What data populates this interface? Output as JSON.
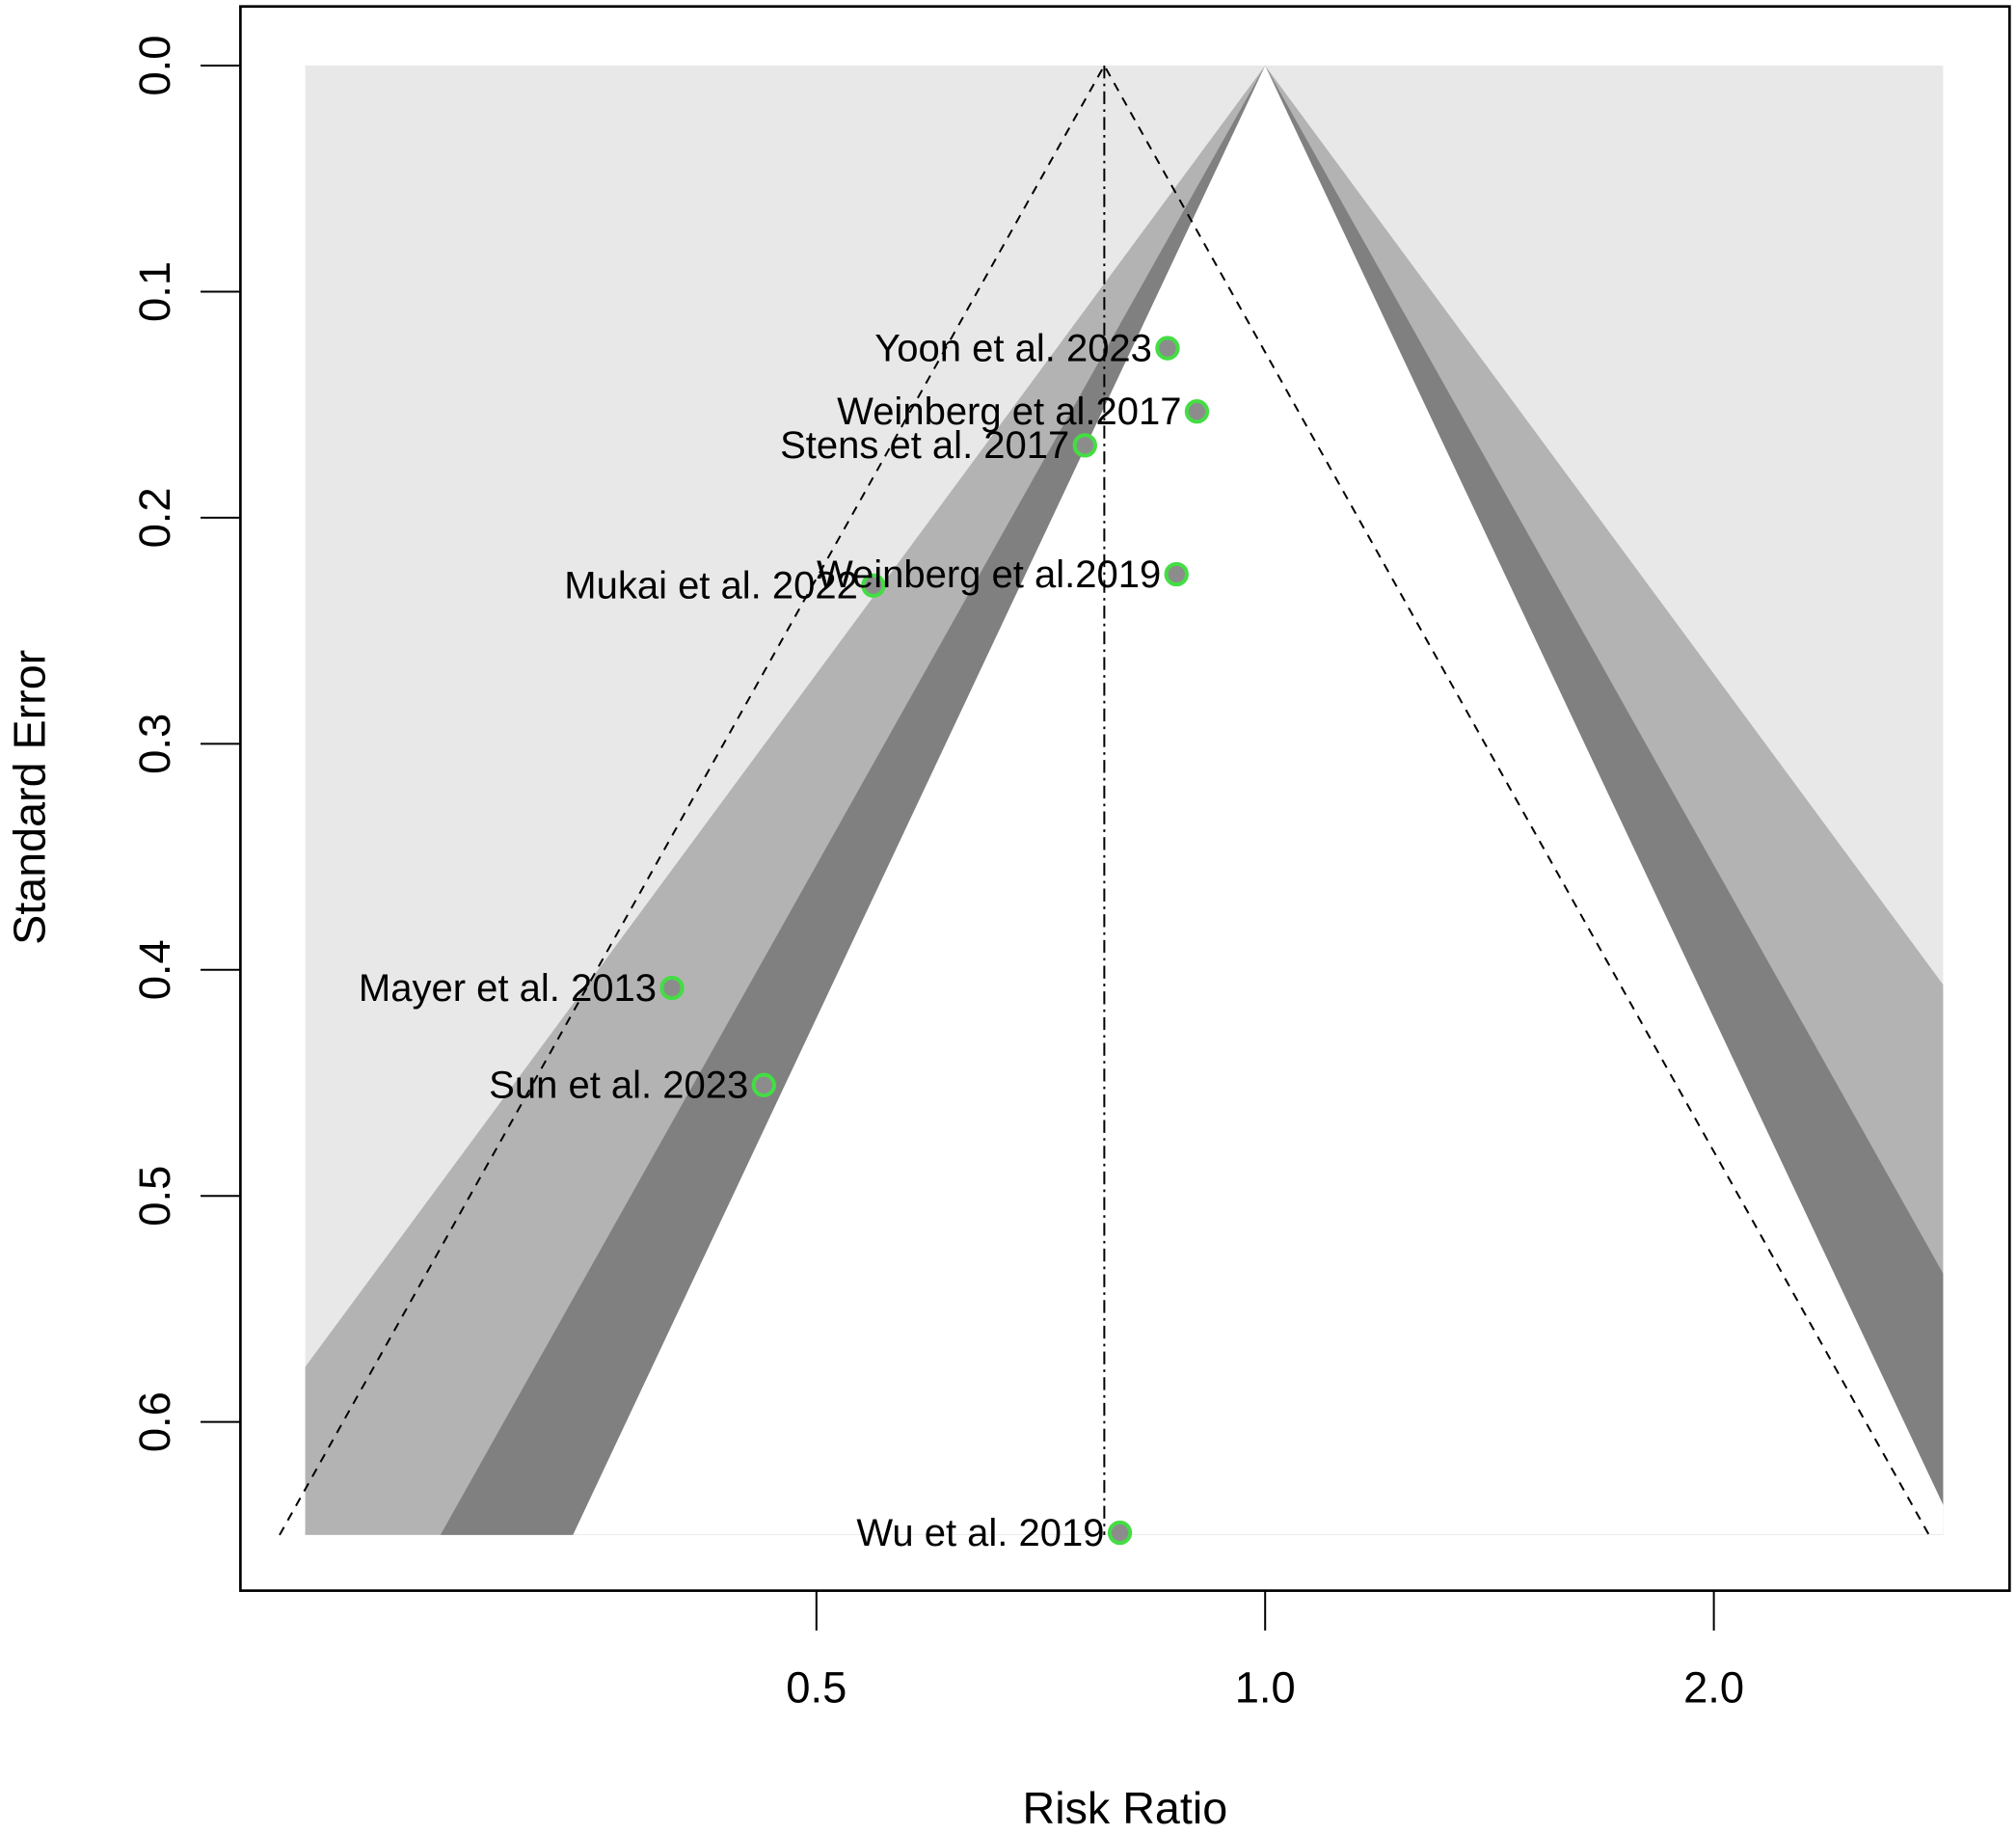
{
  "chart_data": {
    "type": "scatter",
    "subtype": "contour-enhanced funnel plot",
    "xlabel": "Risk Ratio",
    "ylabel": "Standard Error",
    "x_scale": "log",
    "xlim": [
      0.227,
      2.85
    ],
    "ylim": [
      0.65,
      0.0
    ],
    "x_ticks": [
      {
        "value": 0.5,
        "label": "0.5"
      },
      {
        "value": 1.0,
        "label": "1.0"
      },
      {
        "value": 2.0,
        "label": "2.0"
      }
    ],
    "y_ticks": [
      {
        "value": 0.0,
        "label": "0.0"
      },
      {
        "value": 0.1,
        "label": "0.1"
      },
      {
        "value": 0.2,
        "label": "0.2"
      },
      {
        "value": 0.3,
        "label": "0.3"
      },
      {
        "value": 0.4,
        "label": "0.4"
      },
      {
        "value": 0.5,
        "label": "0.5"
      },
      {
        "value": 0.6,
        "label": "0.6"
      }
    ],
    "pooled_estimate": 0.78,
    "contour_z": [
      1.645,
      1.96,
      2.576
    ],
    "contour_center": 1.0,
    "colors": {
      "outer": "#e8e8e8",
      "p01": "#b3b3b3",
      "p005": "#808080",
      "p010": "#ffffff",
      "point_fill": "#8c8c8c",
      "point_stroke": "#44dd44"
    },
    "points": [
      {
        "label": "Yoon et al. 2023",
        "rr": 0.86,
        "se": 0.125
      },
      {
        "label": "Weinberg et al.2017",
        "rr": 0.9,
        "se": 0.153
      },
      {
        "label": "Stens et al. 2017",
        "rr": 0.757,
        "se": 0.168
      },
      {
        "label": "Mukai et al. 2022",
        "rr": 0.546,
        "se": 0.23
      },
      {
        "label": "Weinberg et al.2019",
        "rr": 0.872,
        "se": 0.225
      },
      {
        "label": "Mayer et al. 2013",
        "rr": 0.4,
        "se": 0.408
      },
      {
        "label": "Sun et al. 2023",
        "rr": 0.461,
        "se": 0.451
      },
      {
        "label": "Wu et al. 2019",
        "rr": 0.799,
        "se": 0.649
      }
    ]
  }
}
